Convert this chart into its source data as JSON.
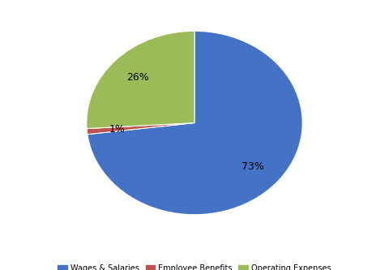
{
  "labels": [
    "Wages & Salaries",
    "Employee Benefits",
    "Operating Expenses"
  ],
  "values": [
    73,
    1,
    26
  ],
  "colors": [
    "#4472C4",
    "#C0504D",
    "#9BBB59"
  ],
  "background_color": "#ffffff",
  "text_color": "#000000",
  "pct_fontsize": 9,
  "legend_fontsize": 7,
  "figsize": [
    4.8,
    3.33
  ],
  "dpi": 100,
  "startangle": 90,
  "pctdistance": 0.72
}
